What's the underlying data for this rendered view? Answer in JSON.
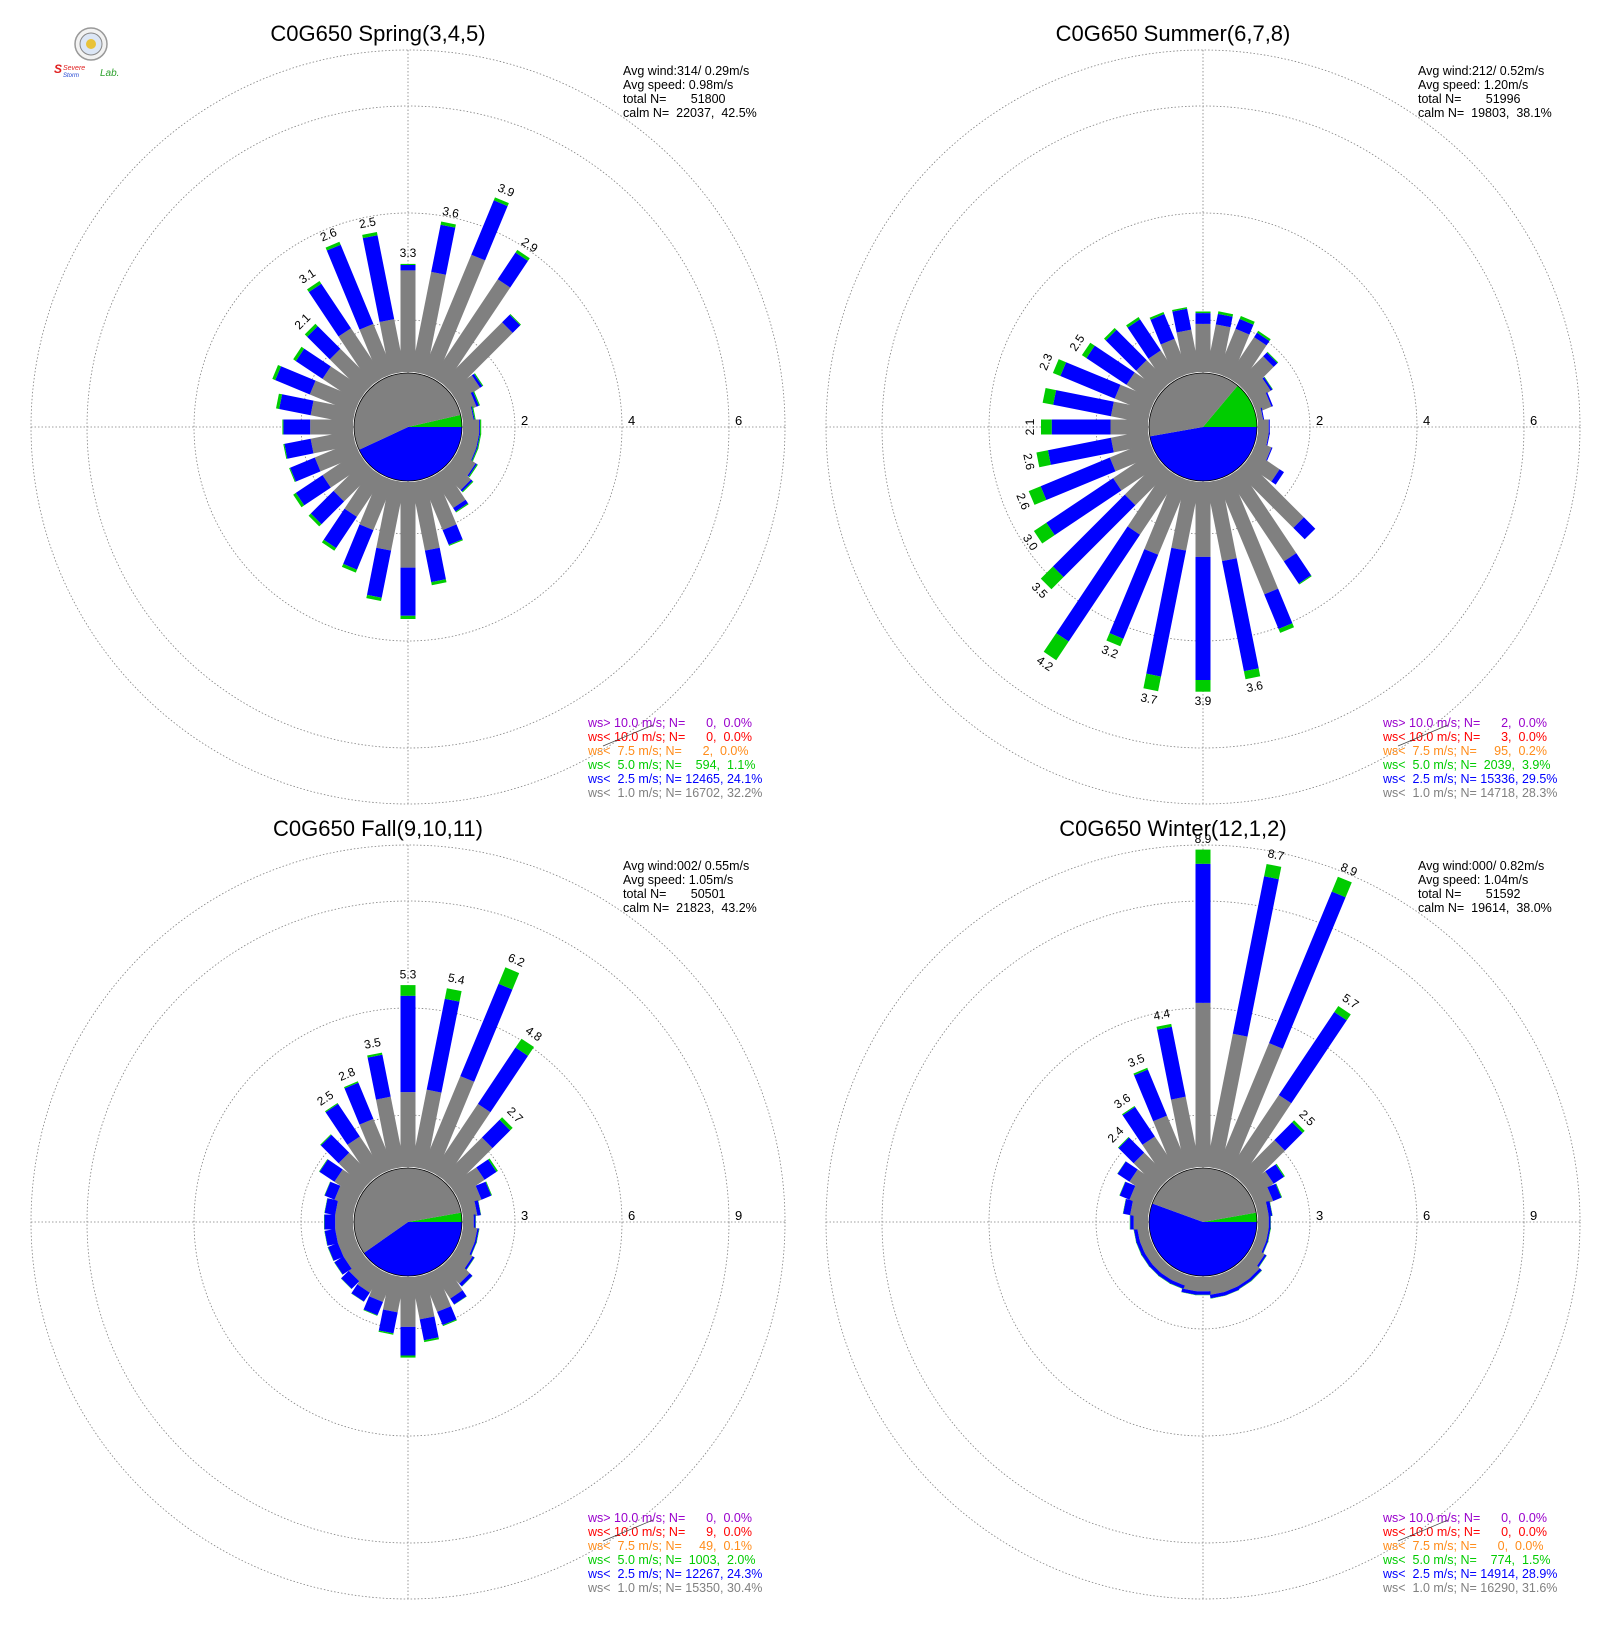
{
  "logo": {
    "text_severe": "Severe",
    "text_storm": "Storm",
    "text_lab": "Lab.",
    "colors": {
      "severe": "#e02020",
      "storm": "#1a3fd0",
      "lab": "#2ca02c",
      "seal": "#b8b8b8"
    }
  },
  "colors": {
    "ws_lt_1": "#808080",
    "ws_lt_2_5": "#0000ff",
    "ws_lt_5": "#00cc00",
    "ws_lt_7_5": "#ff8c1a",
    "ws_lt_10": "#ff0000",
    "ws_gt_10": "#9900cc",
    "grid": "#808080"
  },
  "chart_data": [
    {
      "type": "wind-rose",
      "title": "C0G650 Spring(3,4,5)",
      "stats": [
        "Avg wind:314/ 0.29m/s",
        "Avg speed: 0.98m/s",
        "total N=       51800",
        "calm N=  22037,  42.5%"
      ],
      "ring_labels": [
        "2",
        "4",
        "6"
      ],
      "max": 6,
      "calm_pct": 42.5,
      "calm_split": {
        "gray_angle": 192,
        "blue_angle": 155,
        "green_angle": 13
      },
      "sector_bars": [
        [
          1.9,
          0.1
        ],
        [
          1.9,
          0.9
        ],
        [
          2.4,
          1.1
        ],
        [
          2.2,
          0.6
        ],
        [
          1.6,
          0.2
        ],
        [
          0.5,
          0.05
        ],
        [
          0.3,
          0.05
        ],
        [
          0.2,
          0.02
        ],
        [
          0.3,
          0.02
        ],
        [
          0.3,
          0.02
        ],
        [
          0.3,
          0.02
        ],
        [
          0.4,
          0.03
        ],
        [
          0.5,
          0.04
        ],
        [
          0.7,
          0.08
        ],
        [
          1.0,
          0.3
        ],
        [
          1.3,
          0.6
        ],
        [
          1.6,
          0.9
        ],
        [
          1.3,
          0.9
        ],
        [
          1.0,
          0.8
        ],
        [
          0.9,
          0.7
        ],
        [
          0.8,
          0.6
        ],
        [
          0.8,
          0.6
        ],
        [
          0.8,
          0.5
        ],
        [
          0.8,
          0.5
        ],
        [
          0.8,
          0.5
        ],
        [
          0.8,
          0.6
        ],
        [
          0.9,
          0.7
        ],
        [
          0.8,
          0.6
        ],
        [
          0.9,
          0.6
        ],
        [
          1.1,
          1.0
        ],
        [
          1.0,
          1.6
        ],
        [
          1.0,
          1.6
        ]
      ],
      "totals": [
        3.3,
        3.6,
        3.9,
        2.9,
        null,
        null,
        null,
        null,
        null,
        null,
        null,
        null,
        null,
        null,
        null,
        null,
        null,
        null,
        null,
        null,
        null,
        null,
        null,
        null,
        null,
        null,
        null,
        null,
        2.1,
        3.1,
        2.6,
        2.5
      ],
      "legend": [
        {
          "text": "ws> 10.0 m/s; N=      0,  0.0%",
          "color_key": "ws_gt_10"
        },
        {
          "text": "ws< 10.0 m/s; N=      0,  0.0%",
          "color_key": "ws_lt_10"
        },
        {
          "text": "ws<  7.5 m/s; N=      2,  0.0%",
          "color_key": "ws_lt_7_5"
        },
        {
          "text": "ws<  5.0 m/s; N=    594,  1.1%",
          "color_key": "ws_lt_5"
        },
        {
          "text": "ws<  2.5 m/s; N= 12465, 24.1%",
          "color_key": "ws_lt_2_5"
        },
        {
          "text": "ws<  1.0 m/s; N= 16702, 32.2%",
          "color_key": "ws_lt_1"
        }
      ]
    },
    {
      "type": "wind-rose",
      "title": "C0G650 Summer(6,7,8)",
      "stats": [
        "Avg wind:212/ 0.52m/s",
        "Avg speed: 1.20m/s",
        "total N=       51996",
        "calm N=  19803,  38.1%"
      ],
      "ring_labels": [
        "2",
        "4",
        "6"
      ],
      "max": 6,
      "calm_pct": 38.1,
      "calm_split": {
        "gray_angle": 140,
        "blue_angle": 170,
        "green_angle": 50
      },
      "sector_bars": [
        [
          0.9,
          0.2
        ],
        [
          0.9,
          0.2
        ],
        [
          0.9,
          0.2
        ],
        [
          0.9,
          0.1
        ],
        [
          0.7,
          0.1
        ],
        [
          0.4,
          0.04
        ],
        [
          0.3,
          0.03
        ],
        [
          0.1,
          0.02
        ],
        [
          0.2,
          0.02
        ],
        [
          0.2,
          0.02
        ],
        [
          0.3,
          0.02
        ],
        [
          0.6,
          0.1
        ],
        [
          1.5,
          0.3
        ],
        [
          1.9,
          0.5
        ],
        [
          2.3,
          0.7
        ],
        [
          1.5,
          2.1
        ],
        [
          1.4,
          2.3
        ],
        [
          1.3,
          2.4
        ],
        [
          1.5,
          1.7
        ],
        [
          1.3,
          2.4
        ],
        [
          0.9,
          1.9
        ],
        [
          0.9,
          1.5
        ],
        [
          0.8,
          1.4
        ],
        [
          0.7,
          1.2
        ],
        [
          0.7,
          1.1
        ],
        [
          0.7,
          1.1
        ],
        [
          0.7,
          1.1
        ],
        [
          0.6,
          0.9
        ],
        [
          0.6,
          0.8
        ],
        [
          0.6,
          0.7
        ],
        [
          0.7,
          0.5
        ],
        [
          0.8,
          0.4
        ]
      ],
      "greens": [
        0.03,
        0.05,
        0.06,
        0.04,
        0.02,
        0.01,
        0.0,
        0.0,
        0.0,
        0.0,
        0.0,
        0.0,
        0.0,
        0.02,
        0.08,
        0.15,
        0.22,
        0.28,
        0.15,
        0.42,
        0.32,
        0.28,
        0.24,
        0.22,
        0.2,
        0.2,
        0.15,
        0.1,
        0.05,
        0.05,
        0.04,
        0.03
      ],
      "totals": [
        null,
        null,
        null,
        null,
        null,
        null,
        null,
        null,
        null,
        null,
        null,
        null,
        null,
        null,
        null,
        3.6,
        3.9,
        3.7,
        3.2,
        4.2,
        3.5,
        3.0,
        2.6,
        2.6,
        2.1,
        null,
        2.3,
        2.5,
        null,
        null,
        null,
        null
      ],
      "legend": [
        {
          "text": "ws> 10.0 m/s; N=      2,  0.0%",
          "color_key": "ws_gt_10"
        },
        {
          "text": "ws< 10.0 m/s; N=      3,  0.0%",
          "color_key": "ws_lt_10"
        },
        {
          "text": "ws<  7.5 m/s; N=     95,  0.2%",
          "color_key": "ws_lt_7_5"
        },
        {
          "text": "ws<  5.0 m/s; N=  2039,  3.9%",
          "color_key": "ws_lt_5"
        },
        {
          "text": "ws<  2.5 m/s; N= 15336, 29.5%",
          "color_key": "ws_lt_2_5"
        },
        {
          "text": "ws<  1.0 m/s; N= 14718, 28.3%",
          "color_key": "ws_lt_1"
        }
      ]
    },
    {
      "type": "wind-rose",
      "title": "C0G650 Fall(9,10,11)",
      "stats": [
        "Avg wind:002/ 0.55m/s",
        "Avg speed: 1.05m/s",
        "total N=       50501",
        "calm N=  21823,  43.2%"
      ],
      "ring_labels": [
        "3",
        "6",
        "9"
      ],
      "max": 9,
      "calm_pct": 43.2,
      "calm_split": {
        "gray_angle": 205,
        "blue_angle": 145,
        "green_angle": 10
      },
      "sector_bars": [
        [
          2.1,
          2.7
        ],
        [
          2.2,
          2.6
        ],
        [
          2.8,
          2.8
        ],
        [
          2.3,
          1.9
        ],
        [
          1.6,
          0.7
        ],
        [
          0.9,
          0.4
        ],
        [
          0.6,
          0.3
        ],
        [
          0.4,
          0.1
        ],
        [
          0.3,
          0.05
        ],
        [
          0.4,
          0.05
        ],
        [
          0.4,
          0.05
        ],
        [
          0.5,
          0.06
        ],
        [
          0.7,
          0.1
        ],
        [
          0.9,
          0.2
        ],
        [
          1.1,
          0.4
        ],
        [
          1.2,
          0.6
        ],
        [
          1.4,
          0.8
        ],
        [
          1.0,
          0.6
        ],
        [
          0.8,
          0.4
        ],
        [
          0.7,
          0.3
        ],
        [
          0.6,
          0.3
        ],
        [
          0.5,
          0.3
        ],
        [
          0.5,
          0.3
        ],
        [
          0.5,
          0.3
        ],
        [
          0.5,
          0.3
        ],
        [
          0.5,
          0.3
        ],
        [
          0.6,
          0.3
        ],
        [
          0.8,
          0.5
        ],
        [
          1.0,
          0.7
        ],
        [
          1.2,
          1.1
        ],
        [
          1.5,
          1.1
        ],
        [
          2.0,
          1.2
        ]
      ],
      "greens": [
        0.3,
        0.3,
        0.5,
        0.3,
        0.1,
        0.05,
        0.02,
        0.01,
        0.01,
        0.01,
        0.01,
        0.01,
        0.01,
        0.01,
        0.03,
        0.05,
        0.06,
        0.04,
        0.02,
        0.01,
        0.01,
        0.01,
        0.01,
        0.01,
        0.01,
        0.01,
        0.01,
        0.02,
        0.03,
        0.03,
        0.04,
        0.06
      ],
      "totals": [
        5.3,
        5.4,
        6.2,
        4.8,
        2.7,
        null,
        null,
        null,
        null,
        null,
        null,
        null,
        null,
        null,
        null,
        null,
        null,
        null,
        null,
        null,
        null,
        null,
        null,
        null,
        null,
        null,
        null,
        null,
        null,
        2.5,
        2.8,
        3.5
      ],
      "legend": [
        {
          "text": "ws> 10.0 m/s; N=      0,  0.0%",
          "color_key": "ws_gt_10"
        },
        {
          "text": "ws< 10.0 m/s; N=      9,  0.0%",
          "color_key": "ws_lt_10"
        },
        {
          "text": "ws<  7.5 m/s; N=     49,  0.1%",
          "color_key": "ws_lt_7_5"
        },
        {
          "text": "ws<  5.0 m/s; N=  1003,  2.0%",
          "color_key": "ws_lt_5"
        },
        {
          "text": "ws<  2.5 m/s; N= 12267, 24.3%",
          "color_key": "ws_lt_2_5"
        },
        {
          "text": "ws<  1.0 m/s; N= 15350, 30.4%",
          "color_key": "ws_lt_1"
        }
      ]
    },
    {
      "type": "wind-rose",
      "title": "C0G650 Winter(12,1,2)",
      "stats": [
        "Avg wind:000/ 0.82m/s",
        "Avg speed: 1.04m/s",
        "total N=       51592",
        "calm N=  19614,  38.0%"
      ],
      "ring_labels": [
        "3",
        "6",
        "9"
      ],
      "max": 9,
      "calm_pct": 38.0,
      "calm_split": {
        "gray_angle": 150,
        "blue_angle": 200,
        "green_angle": 10
      },
      "sector_bars": [
        [
          4.6,
          3.9
        ],
        [
          3.8,
          4.5
        ],
        [
          3.8,
          4.6
        ],
        [
          2.6,
          2.8
        ],
        [
          1.5,
          0.7
        ],
        [
          0.7,
          0.35
        ],
        [
          0.5,
          0.25
        ],
        [
          0.3,
          0.1
        ],
        [
          0.3,
          0.05
        ],
        [
          0.3,
          0.05
        ],
        [
          0.3,
          0.05
        ],
        [
          0.4,
          0.06
        ],
        [
          0.5,
          0.08
        ],
        [
          0.5,
          0.08
        ],
        [
          0.5,
          0.1
        ],
        [
          0.5,
          0.1
        ],
        [
          0.4,
          0.1
        ],
        [
          0.4,
          0.1
        ],
        [
          0.3,
          0.1
        ],
        [
          0.3,
          0.1
        ],
        [
          0.3,
          0.1
        ],
        [
          0.3,
          0.1
        ],
        [
          0.3,
          0.1
        ],
        [
          0.3,
          0.1
        ],
        [
          0.4,
          0.1
        ],
        [
          0.5,
          0.2
        ],
        [
          0.6,
          0.3
        ],
        [
          0.8,
          0.4
        ],
        [
          1.0,
          0.6
        ],
        [
          1.2,
          1.0
        ],
        [
          1.6,
          1.4
        ],
        [
          2.0,
          2.0
        ]
      ],
      "greens": [
        0.4,
        0.35,
        0.45,
        0.2,
        0.08,
        0.03,
        0.02,
        0.01,
        0.01,
        0.01,
        0.01,
        0.01,
        0.01,
        0.01,
        0.01,
        0.01,
        0.01,
        0.01,
        0.01,
        0.01,
        0.01,
        0.01,
        0.01,
        0.01,
        0.01,
        0.01,
        0.01,
        0.01,
        0.02,
        0.03,
        0.05,
        0.08
      ],
      "totals": [
        8.9,
        8.7,
        8.9,
        5.7,
        2.5,
        null,
        null,
        null,
        null,
        null,
        null,
        null,
        null,
        null,
        null,
        null,
        null,
        null,
        null,
        null,
        null,
        null,
        null,
        null,
        null,
        null,
        null,
        null,
        2.4,
        3.6,
        3.5,
        4.4
      ],
      "legend": [
        {
          "text": "ws> 10.0 m/s; N=      0,  0.0%",
          "color_key": "ws_gt_10"
        },
        {
          "text": "ws< 10.0 m/s; N=      0,  0.0%",
          "color_key": "ws_lt_10"
        },
        {
          "text": "ws<  7.5 m/s; N=      0,  0.0%",
          "color_key": "ws_lt_7_5"
        },
        {
          "text": "ws<  5.0 m/s; N=    774,  1.5%",
          "color_key": "ws_lt_5"
        },
        {
          "text": "ws<  2.5 m/s; N= 14914, 28.9%",
          "color_key": "ws_lt_2_5"
        },
        {
          "text": "ws<  1.0 m/s; N= 16290, 31.6%",
          "color_key": "ws_lt_1"
        }
      ]
    }
  ]
}
